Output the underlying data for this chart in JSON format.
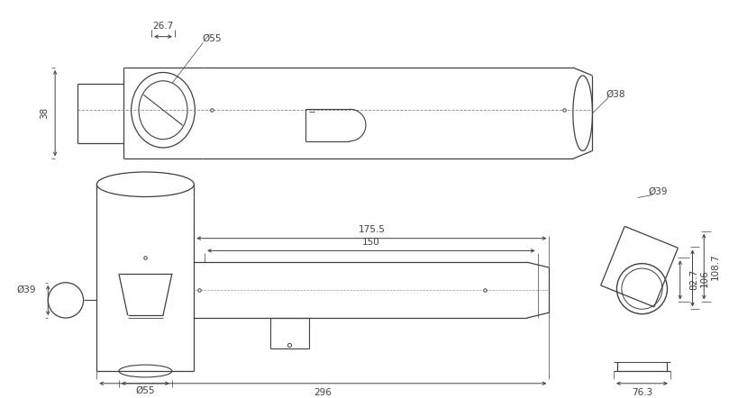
{
  "bg_color": "#ffffff",
  "line_color": "#404040",
  "font_size": 7.5,
  "dims_top": {
    "label_267": "26.7",
    "label_phi55_top": "Ø55",
    "label_38_left": "38",
    "label_phi38_right": "Ø38"
  },
  "dims_bottom": {
    "label_phi39_left": "Ø39",
    "label_phi55_bot": "Ø55",
    "label_296": "296",
    "label_1755": "175.5",
    "label_150": "150"
  },
  "dims_right": {
    "label_phi39": "Ø39",
    "label_827": "82.7",
    "label_106": "106",
    "label_1087": "108.7",
    "label_763": "76.3"
  }
}
